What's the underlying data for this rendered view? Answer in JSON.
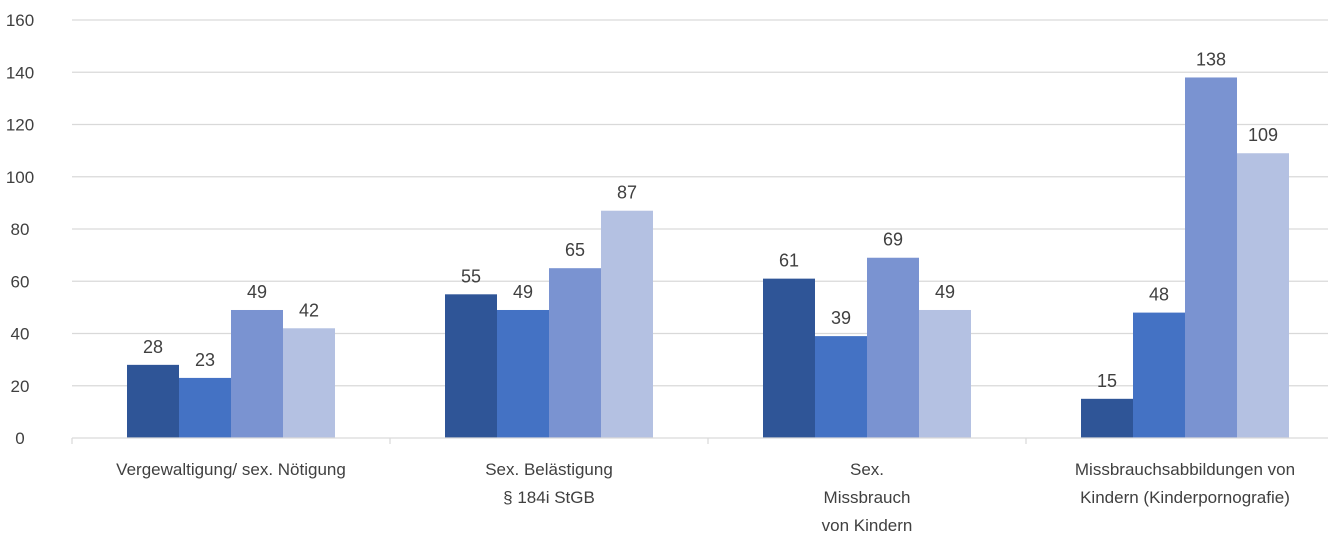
{
  "chart_data": {
    "type": "bar",
    "title": "",
    "xlabel": "",
    "ylabel": "",
    "ylim": [
      0,
      160
    ],
    "yticks": [
      0,
      20,
      40,
      60,
      80,
      100,
      120,
      140,
      160
    ],
    "grid": true,
    "categories": [
      [
        "Vergewaltigung/ sex. Nötigung"
      ],
      [
        "Sex. Belästigung",
        "§ 184i StGB"
      ],
      [
        "Sex.",
        "Missbrauch",
        "von Kindern"
      ],
      [
        "Missbrauchsabbildungen von",
        "Kindern (Kinderpornografie)"
      ]
    ],
    "series": [
      {
        "color": "#2F5597",
        "values": [
          28,
          55,
          61,
          15
        ]
      },
      {
        "color": "#4472C4",
        "values": [
          23,
          49,
          39,
          48
        ]
      },
      {
        "color": "#7A93D1",
        "values": [
          49,
          65,
          69,
          138
        ]
      },
      {
        "color": "#B4C1E2",
        "values": [
          42,
          87,
          49,
          109
        ]
      }
    ]
  }
}
